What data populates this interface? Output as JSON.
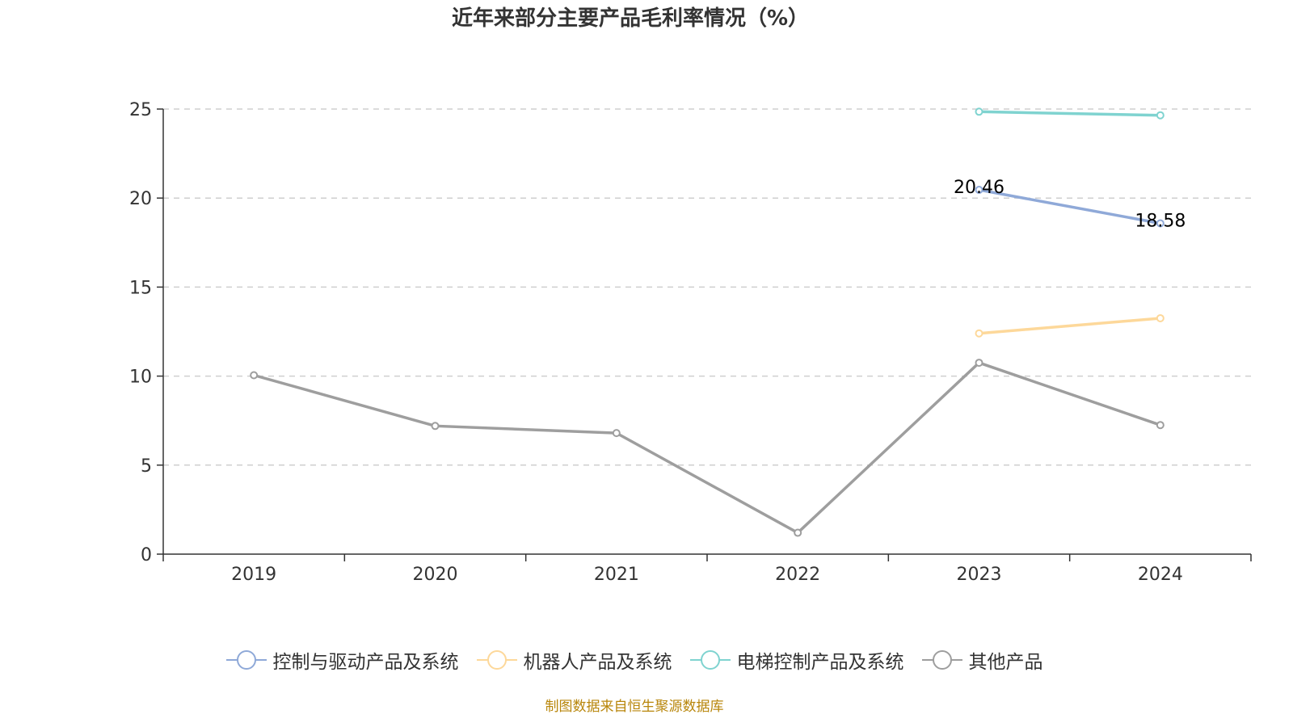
{
  "chart_data": {
    "type": "line",
    "title": "近年来部分主要产品毛利率情况（%）",
    "categories": [
      "2019",
      "2020",
      "2021",
      "2022",
      "2023",
      "2024"
    ],
    "ylim": [
      0,
      25
    ],
    "yticks": [
      0,
      5,
      10,
      15,
      20,
      25
    ],
    "grid": "horizontal dashed",
    "legend_position": "bottom",
    "series": [
      {
        "name": "控制与驱动产品及系统",
        "color": "#8fa9d8",
        "values": [
          null,
          null,
          null,
          null,
          20.46,
          18.58
        ],
        "labels": [
          "",
          "",
          "",
          "",
          "20.46",
          "18.58"
        ]
      },
      {
        "name": "机器人产品及系统",
        "color": "#fdd89a",
        "values": [
          null,
          null,
          null,
          null,
          12.4,
          13.25
        ],
        "labels": [
          "",
          "",
          "",
          "",
          "",
          ""
        ]
      },
      {
        "name": "电梯控制产品及系统",
        "color": "#7fd3d0",
        "values": [
          null,
          null,
          null,
          null,
          24.85,
          24.65
        ],
        "labels": [
          "",
          "",
          "",
          "",
          "",
          ""
        ]
      },
      {
        "name": "其他产品",
        "color": "#9e9e9e",
        "values": [
          10.05,
          7.2,
          6.8,
          1.2,
          10.75,
          7.25
        ],
        "labels": [
          "",
          "",
          "",
          "",
          "",
          ""
        ]
      }
    ]
  },
  "source_note": "制图数据来自恒生聚源数据库"
}
